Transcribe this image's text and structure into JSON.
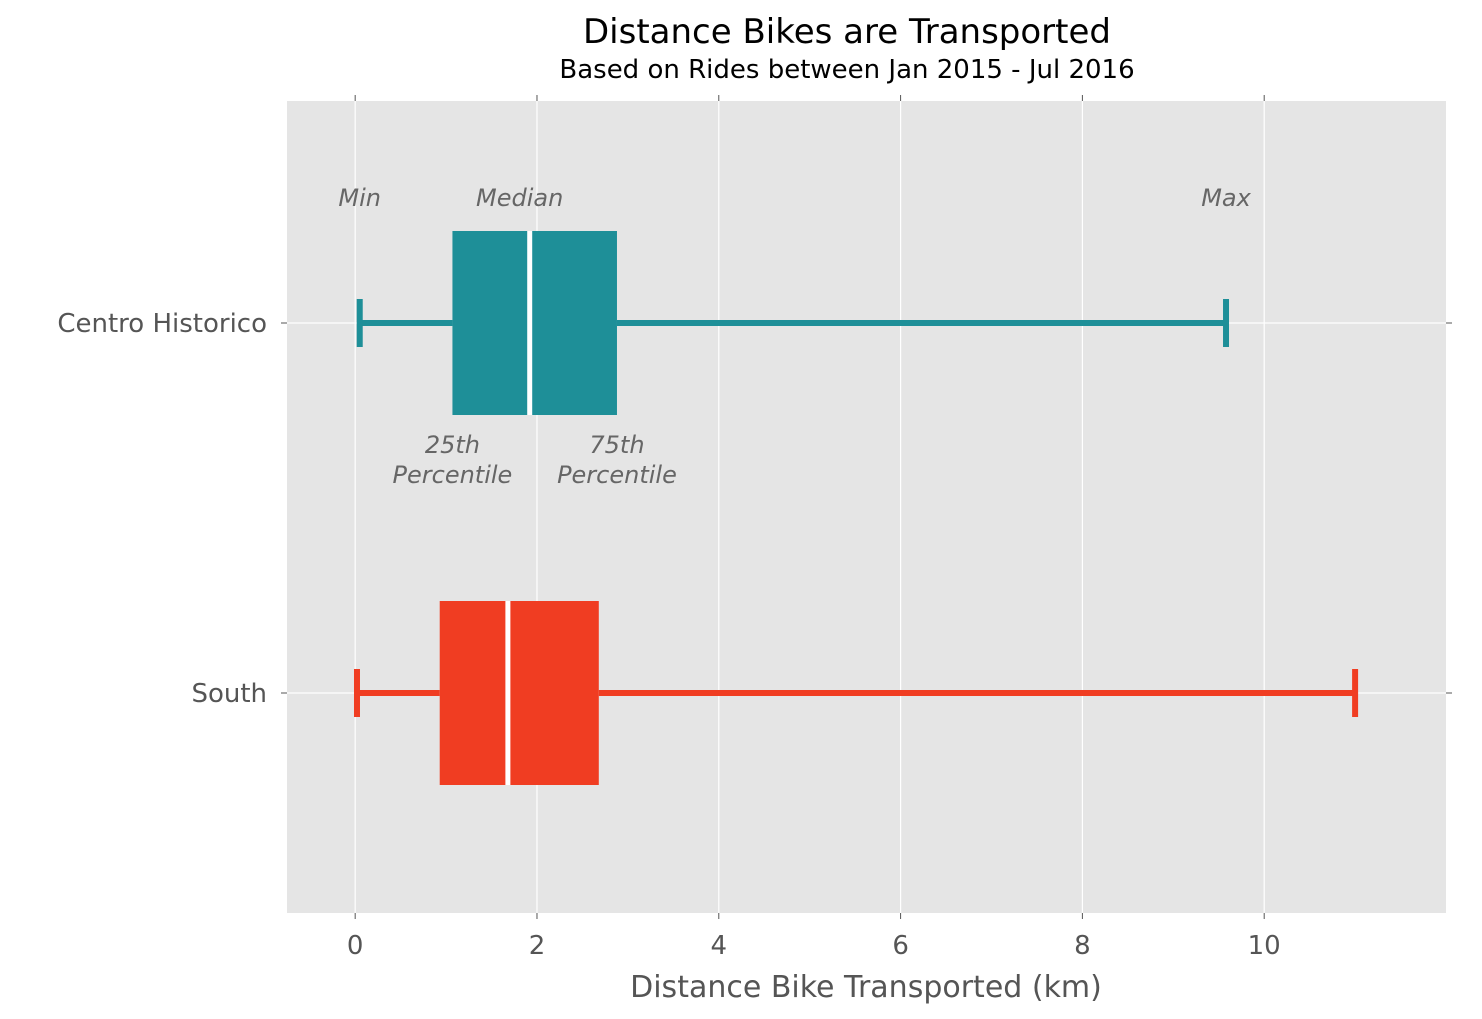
{
  "chart_data": {
    "type": "boxplot",
    "title": "Distance Bikes are Transported",
    "subtitle": "Based on Rides between Jan 2015 - Jul 2016",
    "xlabel": "Distance Bike Transported (km)",
    "ylabel": "",
    "xlim": [
      -0.75,
      12.0
    ],
    "xticks": [
      0,
      2,
      4,
      6,
      8,
      10
    ],
    "xtick_labels": [
      "0",
      "2",
      "4",
      "6",
      "8",
      "10"
    ],
    "grid": true,
    "orientation": "horizontal",
    "series": [
      {
        "name": "Centro Historico",
        "min": 0.05,
        "q1": 1.07,
        "median": 1.92,
        "q3": 2.88,
        "max": 9.58,
        "color": "#1e8f98"
      },
      {
        "name": "South",
        "min": 0.02,
        "q1": 0.93,
        "median": 1.68,
        "q3": 2.68,
        "max": 11.0,
        "color": "#f03d22"
      }
    ],
    "annotations": {
      "min": "Min",
      "median": "Median",
      "max": "Max",
      "q1_line1": "25th",
      "q1_line2": "Percentile",
      "q3_line1": "75th",
      "q3_line2": "Percentile"
    },
    "colors": {
      "plot_background": "#e5e5e5",
      "grid": "#ffffff",
      "median_line": "#ffffff"
    }
  }
}
